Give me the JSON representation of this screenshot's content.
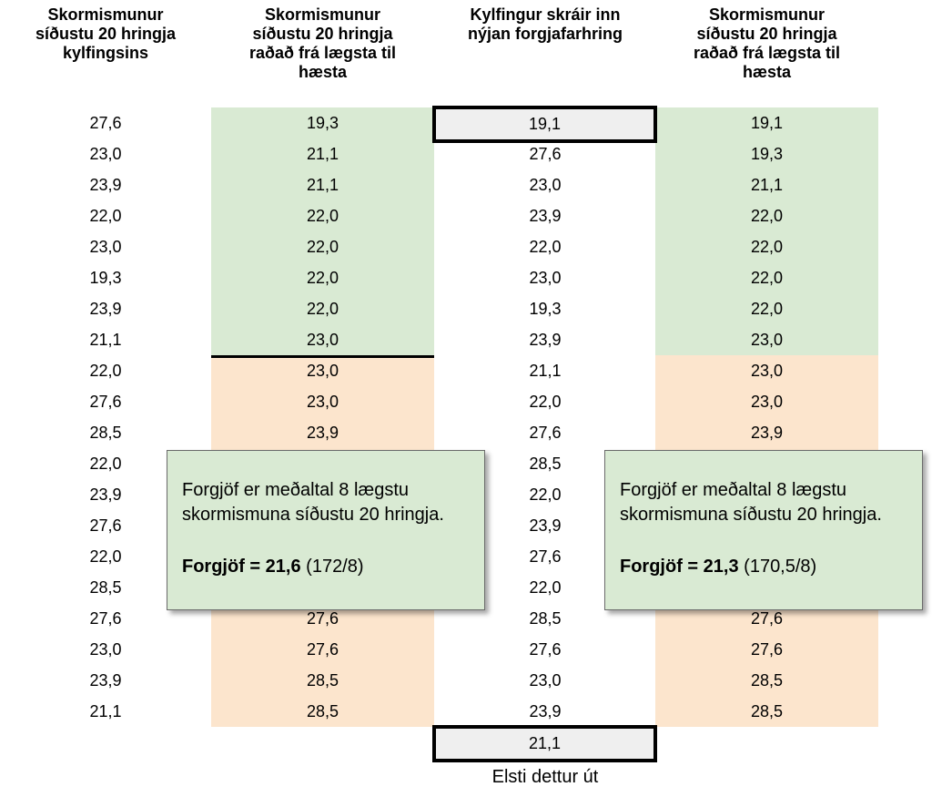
{
  "headers": {
    "col1": [
      "Skormismunur",
      "síðustu 20 hringja",
      "kylfingsins"
    ],
    "col2": [
      "Skormismunur",
      "síðustu 20 hringja",
      "raðað frá lægsta til",
      "hæsta"
    ],
    "col3": [
      "Kylfingur skráir inn",
      "nýjan forgjafarhring"
    ],
    "col4": [
      "Skormismunur",
      "síðustu 20 hringja",
      "raðað frá lægsta til",
      "hæsta"
    ]
  },
  "col1_values": [
    "27,6",
    "23,0",
    "23,9",
    "22,0",
    "23,0",
    "19,3",
    "23,9",
    "21,1",
    "22,0",
    "27,6",
    "28,5",
    "22,0",
    "23,9",
    "27,6",
    "22,0",
    "28,5",
    "27,6",
    "23,0",
    "23,9",
    "21,1"
  ],
  "col2_values": [
    "19,3",
    "21,1",
    "21,1",
    "22,0",
    "22,0",
    "22,0",
    "22,0",
    "23,0",
    "23,0",
    "23,0",
    "23,9",
    "",
    "",
    "",
    "",
    "",
    "27,6",
    "27,6",
    "28,5",
    "28,5"
  ],
  "col3_new_entry": "19,1",
  "col3_values": [
    "27,6",
    "23,0",
    "23,9",
    "22,0",
    "23,0",
    "19,3",
    "23,9",
    "21,1",
    "22,0",
    "27,6",
    "28,5",
    "22,0",
    "23,9",
    "27,6",
    "22,0",
    "28,5",
    "27,6",
    "23,0",
    "23,9"
  ],
  "col4_values": [
    "19,1",
    "19,3",
    "21,1",
    "22,0",
    "22,0",
    "22,0",
    "22,0",
    "23,0",
    "23,0",
    "23,0",
    "23,9",
    "",
    "",
    "",
    "",
    "",
    "27,6",
    "27,6",
    "28,5",
    "28,5"
  ],
  "dropped_value": "21,1",
  "dropped_label": "Elsti dettur út",
  "note_left": {
    "text_line1": "Forgjöf er meðaltal 8 lægstu",
    "text_line2": "skormismuna síðustu 20 hringja.",
    "formula_label": "Forgjöf = 21,6",
    "formula_detail": "(172/8)"
  },
  "note_right": {
    "text_line1": "Forgjöf er meðaltal 8 lægstu",
    "text_line2": "skormismuna síðustu 20 hringja.",
    "formula_label": "Forgjöf = 21,3",
    "formula_detail": "(170,5/8)"
  },
  "colors": {
    "lowest8": "#d9ead3",
    "rest": "#fce5cd",
    "boxed": "#efefef"
  }
}
